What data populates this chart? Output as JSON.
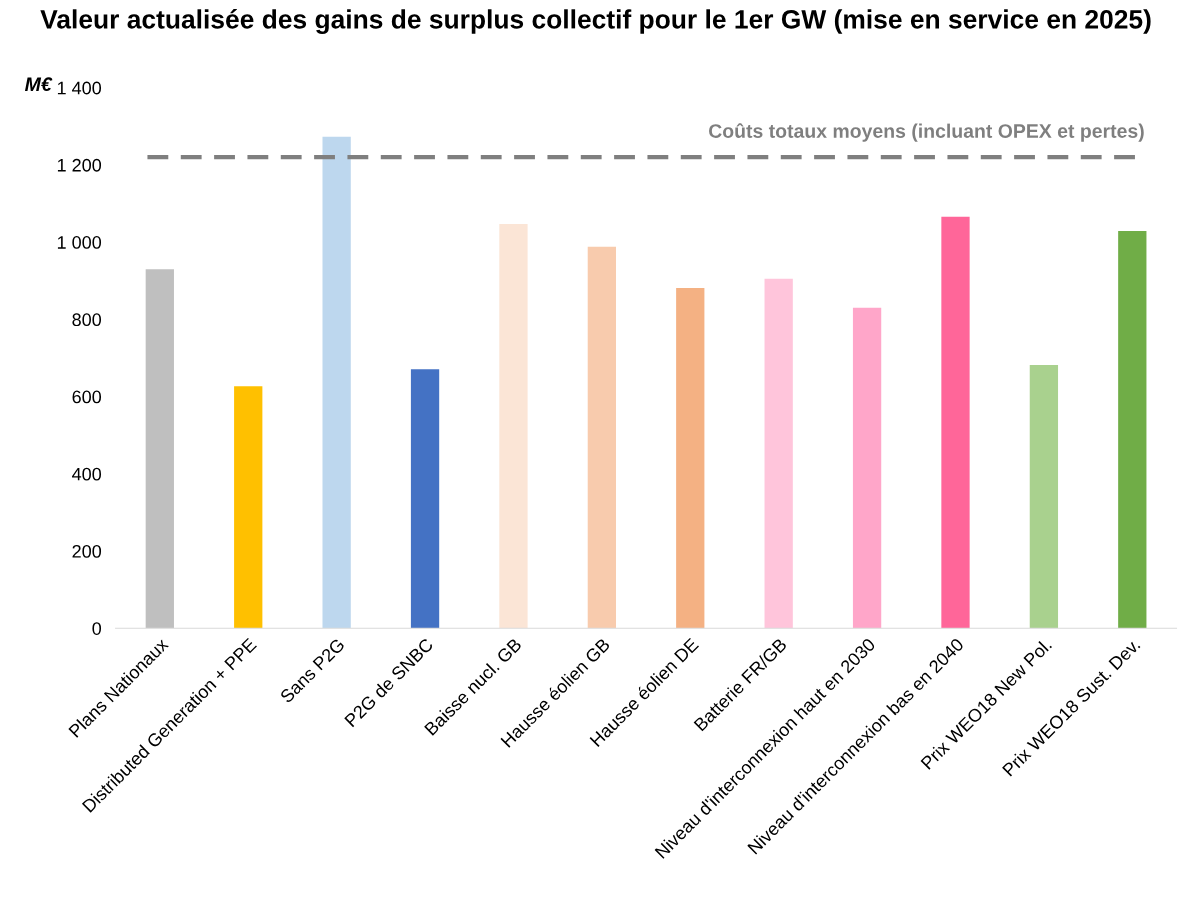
{
  "chart_data": {
    "type": "bar",
    "title": "Valeur actualisée des gains de surplus collectif pour le 1er GW (mise en service en 2025)",
    "ylabel": "M€",
    "categories": [
      "Plans Nationaux",
      "Distributed Generation + PPE",
      "Sans P2G",
      "P2G de SNBC",
      "Baisse nucl. GB",
      "Hausse éolien GB",
      "Hausse éolien DE",
      "Batterie FR/GB",
      "Niveau d'interconnexion haut en 2030",
      "Niveau d'interconnexion bas en 2040",
      "Prix WEO18 New Pol.",
      "Prix WEO18 Sust. Dev."
    ],
    "values": [
      930,
      627,
      1273,
      671,
      1047,
      988,
      881,
      905,
      830,
      1066,
      682,
      1029
    ],
    "colors": [
      "#bfbfbf",
      "#ffc000",
      "#bdd7ee",
      "#4472c4",
      "#fbe5d6",
      "#f8cbad",
      "#f4b183",
      "#ffc5db",
      "#ffa6c9",
      "#ff6699",
      "#a9d18e",
      "#70ad47"
    ],
    "ylim": [
      0,
      1400
    ],
    "yticks": [
      0,
      200,
      400,
      600,
      800,
      {
        "value": 1000,
        "label": "1 000"
      },
      {
        "value": 1200,
        "label": "1 200"
      },
      {
        "value": 1400,
        "label": "1 400"
      }
    ],
    "ref_lines": [
      {
        "axis": "y",
        "value": 1220,
        "label": "Coûts totaux moyens (incluant OPEX et pertes)",
        "color": "#7f7f7f",
        "line_style": "dashed"
      }
    ],
    "grid": false,
    "legend": false
  }
}
